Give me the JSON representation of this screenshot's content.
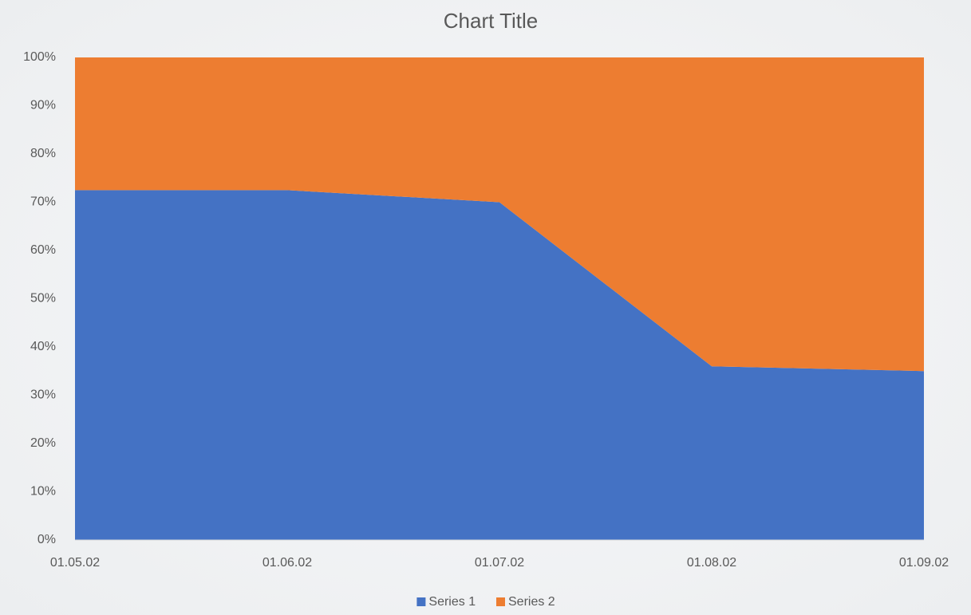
{
  "chart_data": {
    "type": "area",
    "stacked": true,
    "title": "Chart Title",
    "categories": [
      "01.05.02",
      "01.06.02",
      "01.07.02",
      "01.08.02",
      "01.09.02"
    ],
    "series": [
      {
        "name": "Series 1",
        "color": "#4472c4",
        "values": [
          72.5,
          72.5,
          70,
          36,
          35
        ]
      },
      {
        "name": "Series 2",
        "color": "#ed7d31",
        "values": [
          27.5,
          27.5,
          30,
          64,
          65
        ]
      }
    ],
    "ylim": [
      0,
      100
    ],
    "yticks": [
      {
        "value": 0,
        "label": "0%"
      },
      {
        "value": 10,
        "label": "10%"
      },
      {
        "value": 20,
        "label": "20%"
      },
      {
        "value": 30,
        "label": "30%"
      },
      {
        "value": 40,
        "label": "40%"
      },
      {
        "value": 50,
        "label": "50%"
      },
      {
        "value": 60,
        "label": "60%"
      },
      {
        "value": 70,
        "label": "70%"
      },
      {
        "value": 80,
        "label": "80%"
      },
      {
        "value": 90,
        "label": "90%"
      },
      {
        "value": 100,
        "label": "100%"
      }
    ],
    "legend": "bottom"
  }
}
